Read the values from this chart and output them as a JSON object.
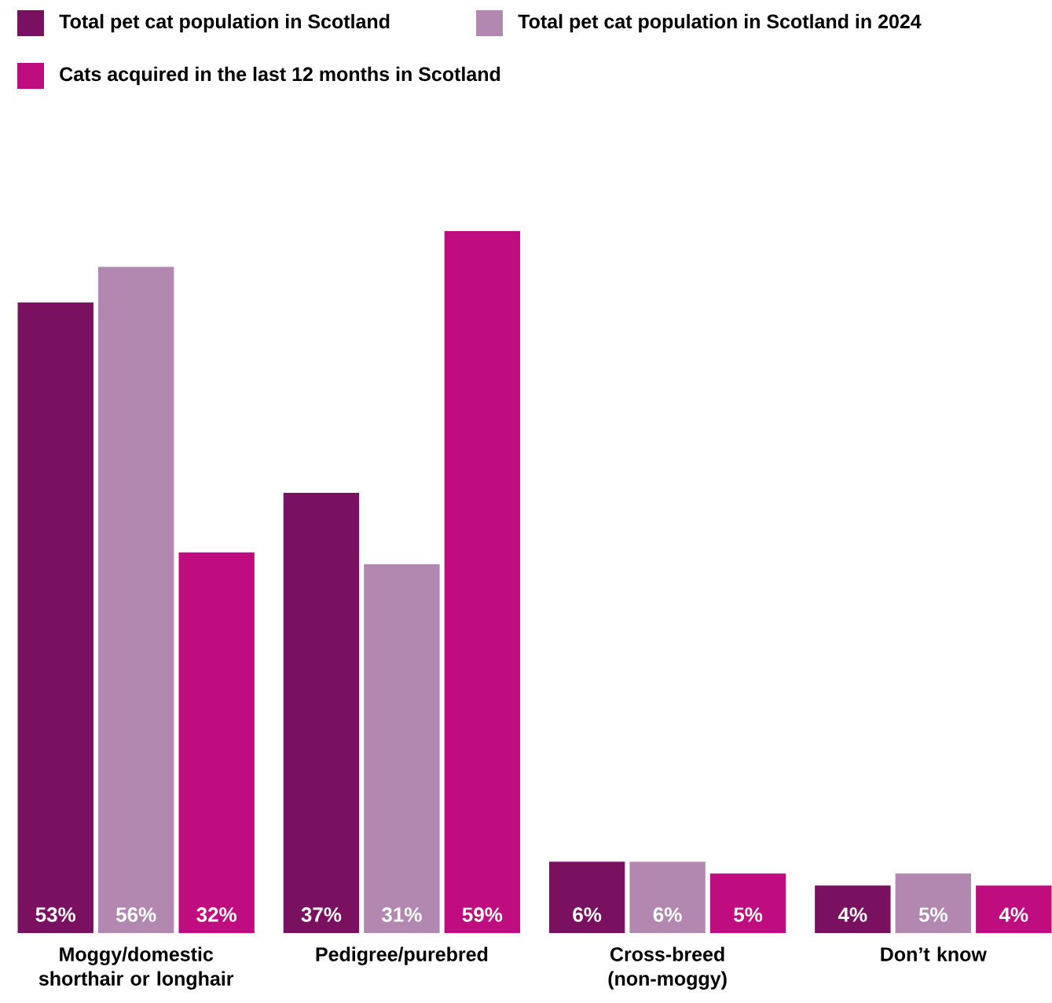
{
  "chart_data": {
    "type": "bar",
    "categories": [
      "Moggy/domestic shorthair or longhair",
      "Pedigree/purebred",
      "Cross-breed (non-moggy)",
      "Don’t know"
    ],
    "series": [
      {
        "name": "Total pet cat population in Scotland",
        "color": "#7a1060",
        "values": [
          53,
          37,
          6,
          4
        ],
        "value_labels": [
          "53%",
          "37%",
          "6%",
          "4%"
        ]
      },
      {
        "name": "Total pet cat population in Scotland in 2024",
        "color": "#b288b0",
        "values": [
          56,
          31,
          6,
          5
        ],
        "value_labels": [
          "56%",
          "31%",
          "6%",
          "5%"
        ]
      },
      {
        "name": "Cats acquired in the last 12 months in Scotland",
        "color": "#bf0d80",
        "values": [
          32,
          59,
          5,
          4
        ],
        "value_labels": [
          "32%",
          "59%",
          "5%",
          "4%"
        ]
      }
    ],
    "legend": "top"
  }
}
